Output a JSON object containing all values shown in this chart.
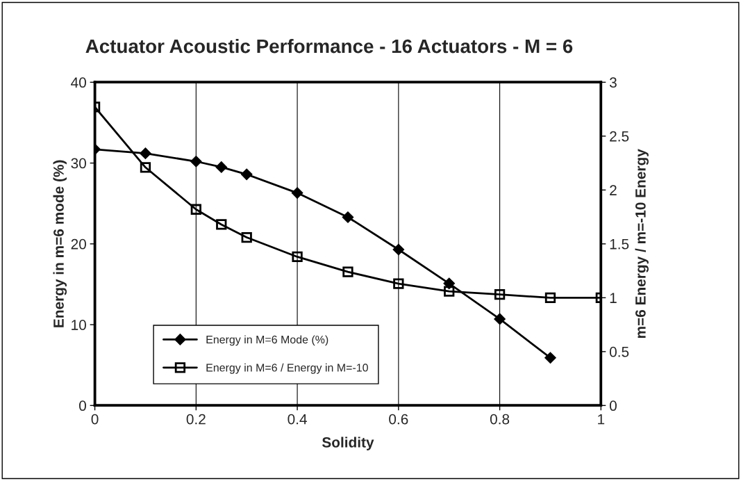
{
  "chart_data": {
    "type": "line",
    "title": "Actuator Acoustic Performance - 16 Actuators - M = 6",
    "xlabel": "Solidity",
    "ylabel": "Energy in m=6 mode (%)",
    "y2label": "m=6 Energy / m=-10 Energy",
    "series": [
      {
        "name": "Energy in M=6 Mode (%)",
        "color": "#000000",
        "marker": "diamond",
        "x": [
          0,
          0.1,
          0.2,
          0.25,
          0.3,
          0.4,
          0.5,
          0.6,
          0.7,
          0.8,
          0.9
        ],
        "values": [
          31.7,
          31.2,
          30.2,
          29.5,
          28.6,
          26.3,
          23.3,
          19.3,
          15.1,
          10.7,
          5.9
        ]
      },
      {
        "name": "Energy in M=6 / Energy in M=-10",
        "color": "#000000",
        "marker": "square",
        "axis": "y2",
        "x": [
          0,
          0.1,
          0.2,
          0.25,
          0.3,
          0.4,
          0.5,
          0.6,
          0.7,
          0.8,
          0.9,
          1
        ],
        "values": [
          2.77,
          2.21,
          1.82,
          1.68,
          1.56,
          1.38,
          1.24,
          1.13,
          1.06,
          1.03,
          1.0,
          1.0
        ]
      }
    ],
    "xlim": [
      0,
      1
    ],
    "xticks": [
      0,
      0.2,
      0.4,
      0.6,
      0.8,
      1
    ],
    "ylim": [
      0,
      40
    ],
    "yticks": [
      0,
      10,
      20,
      30,
      40
    ],
    "y2lim": [
      0,
      3
    ],
    "y2ticks": [
      0,
      0.5,
      1,
      1.5,
      2,
      2.5,
      3
    ],
    "grid": "x",
    "legend": "bottom left",
    "line_style": "solid"
  }
}
